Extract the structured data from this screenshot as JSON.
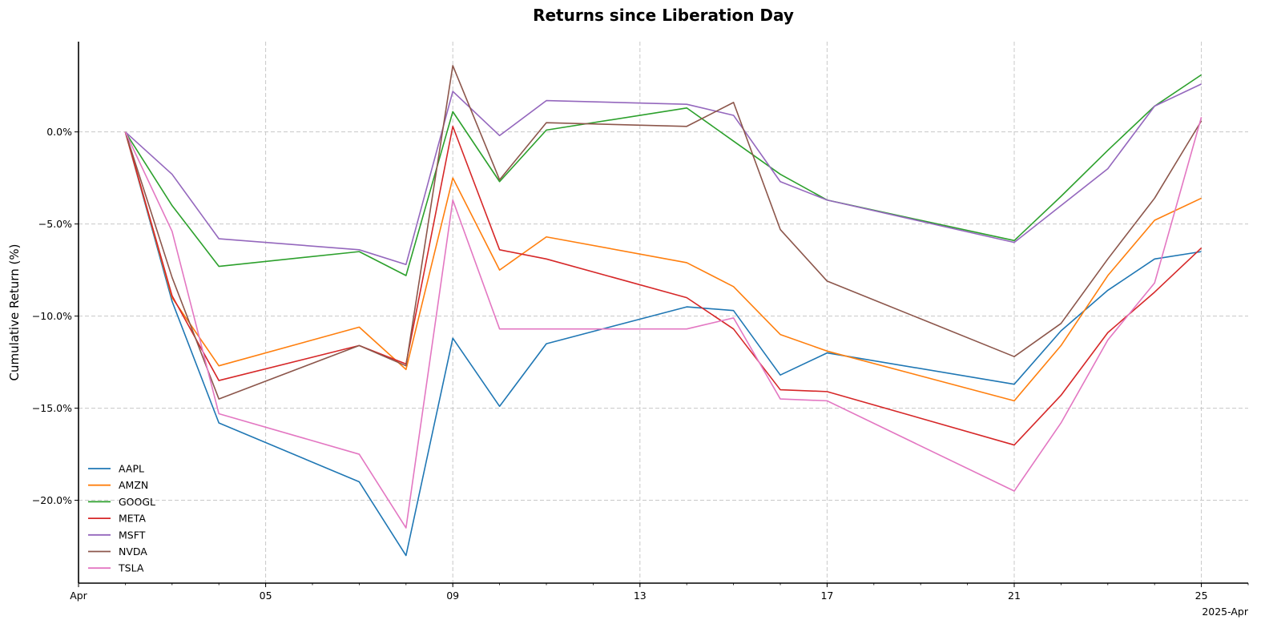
{
  "chart_data": {
    "type": "line",
    "title": "Returns since Liberation Day",
    "xlabel": "",
    "ylabel": "Cumulative Return (%)",
    "x_offset_label": "2025-Apr",
    "x": [
      "2025-04-02",
      "2025-04-03",
      "2025-04-04",
      "2025-04-07",
      "2025-04-08",
      "2025-04-09",
      "2025-04-10",
      "2025-04-11",
      "2025-04-14",
      "2025-04-15",
      "2025-04-16",
      "2025-04-17",
      "2025-04-21",
      "2025-04-22",
      "2025-04-23",
      "2025-04-24",
      "2025-04-25"
    ],
    "xlim": [
      "2025-04-01",
      "2025-04-26"
    ],
    "ylim": [
      -24.5,
      4.9
    ],
    "x_ticks": [
      {
        "value": "2025-04-01",
        "label": "Apr"
      },
      {
        "value": "2025-04-05",
        "label": "05"
      },
      {
        "value": "2025-04-09",
        "label": "09"
      },
      {
        "value": "2025-04-13",
        "label": "13"
      },
      {
        "value": "2025-04-17",
        "label": "17"
      },
      {
        "value": "2025-04-21",
        "label": "21"
      },
      {
        "value": "2025-04-25",
        "label": "25"
      }
    ],
    "y_ticks": [
      {
        "value": 0,
        "label": "0.0%"
      },
      {
        "value": -5,
        "label": "−5.0%"
      },
      {
        "value": -10,
        "label": "−10.0%"
      },
      {
        "value": -15,
        "label": "−15.0%"
      },
      {
        "value": -20,
        "label": "−20.0%"
      }
    ],
    "grid": true,
    "legend_position": "lower-left",
    "series": [
      {
        "name": "AAPL",
        "color": "#1f77b4",
        "values": [
          0,
          -9.2,
          -15.8,
          -19.0,
          -23.0,
          -11.2,
          -14.9,
          -11.5,
          -9.5,
          -9.7,
          -13.2,
          -12.0,
          -13.7,
          -10.8,
          -8.6,
          -6.9,
          -6.5
        ]
      },
      {
        "name": "AMZN",
        "color": "#ff7f0e",
        "values": [
          0,
          -9.0,
          -12.7,
          -10.6,
          -12.9,
          -2.5,
          -7.5,
          -5.7,
          -7.1,
          -8.4,
          -11.0,
          -11.9,
          -14.6,
          -11.6,
          -7.8,
          -4.8,
          -3.6
        ]
      },
      {
        "name": "GOOGL",
        "color": "#2ca02c",
        "values": [
          0,
          -4.0,
          -7.3,
          -6.5,
          -7.8,
          1.1,
          -2.7,
          0.1,
          1.3,
          -0.5,
          -2.3,
          -3.7,
          -5.9,
          -3.5,
          -1.0,
          1.4,
          3.1
        ]
      },
      {
        "name": "META",
        "color": "#d62728",
        "values": [
          0,
          -8.9,
          -13.5,
          -11.6,
          -12.6,
          0.3,
          -6.4,
          -6.9,
          -9.0,
          -10.7,
          -14.0,
          -14.1,
          -17.0,
          -14.3,
          -10.9,
          -8.7,
          -6.3
        ]
      },
      {
        "name": "MSFT",
        "color": "#9467bd",
        "values": [
          0,
          -2.3,
          -5.8,
          -6.4,
          -7.2,
          2.2,
          -0.2,
          1.7,
          1.5,
          0.9,
          -2.7,
          -3.7,
          -6.0,
          -4.0,
          -2.0,
          1.4,
          2.6
        ]
      },
      {
        "name": "NVDA",
        "color": "#8c564b",
        "values": [
          0,
          -7.9,
          -14.5,
          -11.6,
          -12.7,
          3.6,
          -2.6,
          0.5,
          0.3,
          1.6,
          -5.3,
          -8.1,
          -12.2,
          -10.4,
          -6.9,
          -3.6,
          0.6
        ]
      },
      {
        "name": "TSLA",
        "color": "#e377c2",
        "values": [
          0,
          -5.4,
          -15.3,
          -17.5,
          -21.5,
          -3.7,
          -10.7,
          -10.7,
          -10.7,
          -10.1,
          -14.5,
          -14.6,
          -19.5,
          -15.8,
          -11.3,
          -8.2,
          0.8
        ]
      }
    ]
  }
}
